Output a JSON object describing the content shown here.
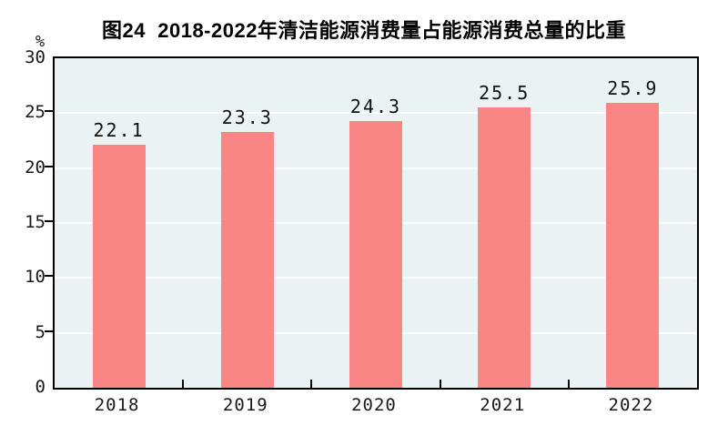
{
  "figure": {
    "title": "图24  2018-2022年清洁能源消费量占能源消费总量的比重",
    "unit_label": "%"
  },
  "colors": {
    "bar": "#FA8585",
    "plot_background": "#EAF2F4",
    "gridline": "#FFFFFF",
    "axis": "#000000",
    "text": "#000000",
    "page_background": "#FFFFFF"
  },
  "chart_data": {
    "type": "bar",
    "title": "图24  2018-2022年清洁能源消费量占能源消费总量的比重",
    "categories": [
      "2018",
      "2019",
      "2020",
      "2021",
      "2022"
    ],
    "values": [
      22.1,
      23.3,
      24.3,
      25.5,
      25.9
    ],
    "value_labels": [
      "22.1",
      "23.3",
      "24.3",
      "25.5",
      "25.9"
    ],
    "xlabel": "",
    "ylabel": "%",
    "ylim": [
      0,
      30
    ],
    "yticks": [
      0,
      5,
      10,
      15,
      20,
      25,
      30
    ],
    "ytick_step": 5,
    "grid": "horizontal",
    "legend": "none",
    "bar_color": "#FA8585",
    "plot_background": "#EAF2F4"
  }
}
